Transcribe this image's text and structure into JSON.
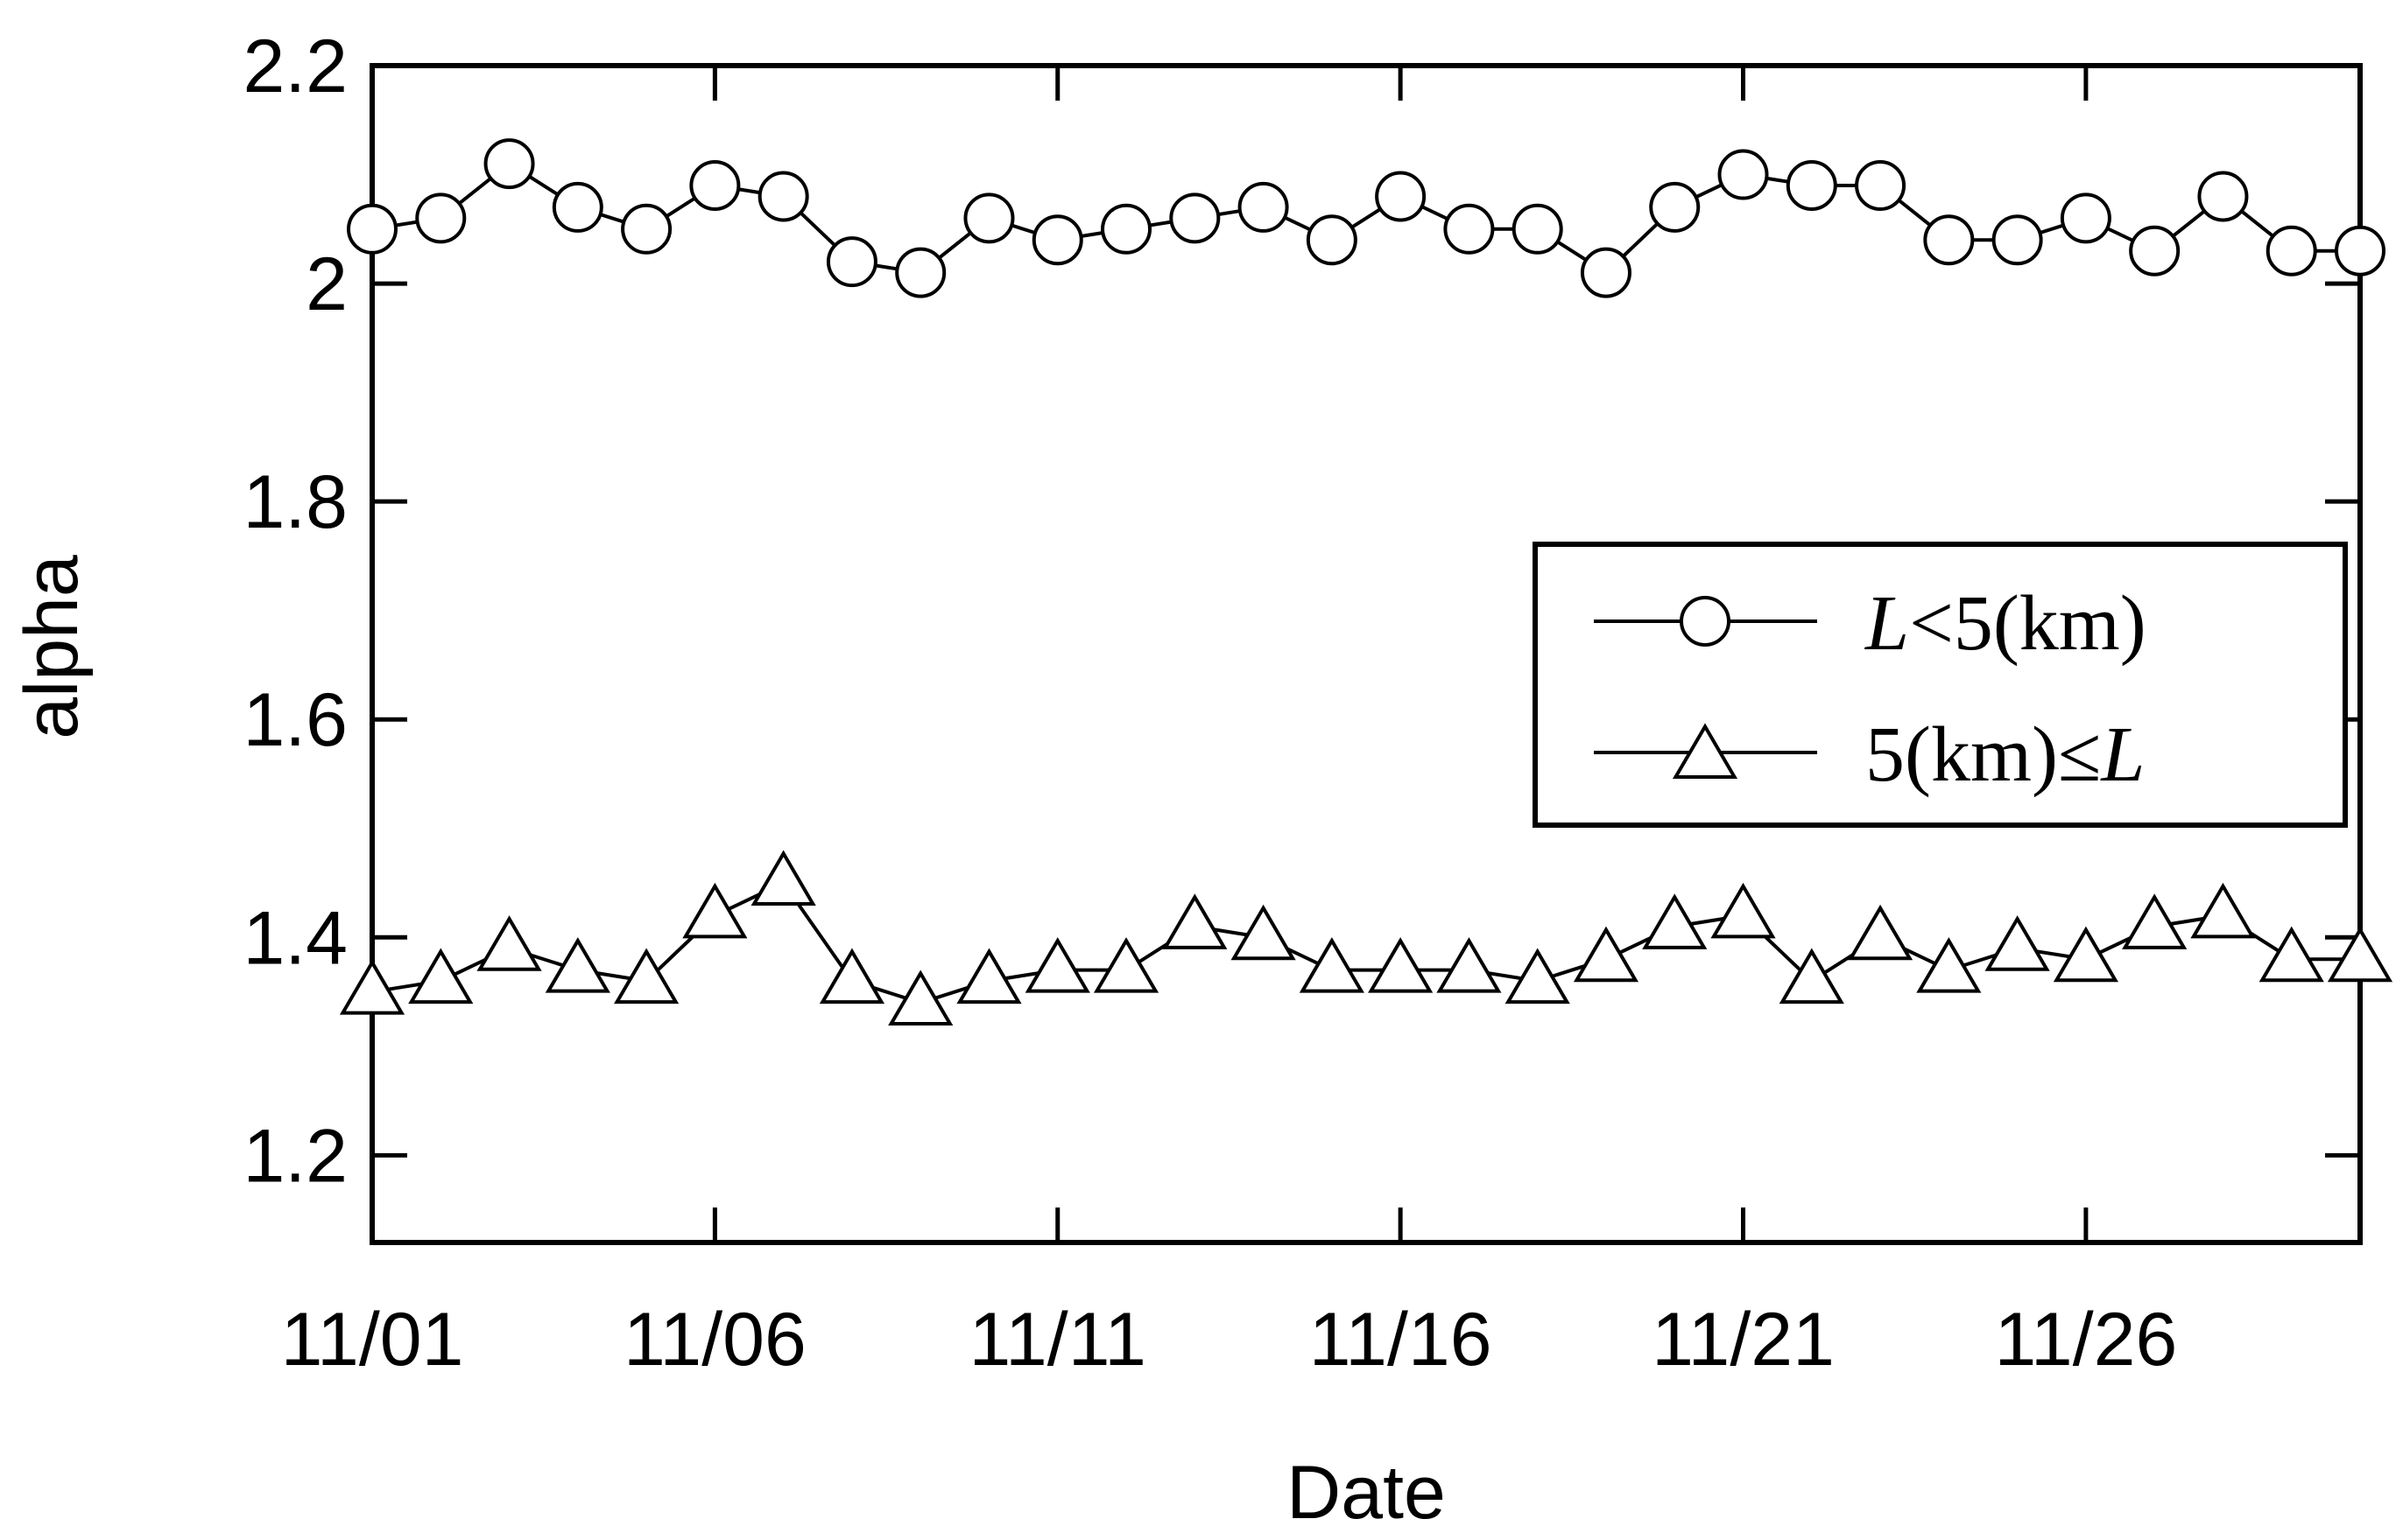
{
  "chart_data": {
    "type": "line",
    "xlabel": "Date",
    "ylabel": "alpha",
    "ylim": [
      1.12,
      2.2
    ],
    "yticks": [
      1.2,
      1.4,
      1.6,
      1.8,
      2.0,
      2.2
    ],
    "ytick_labels": [
      "1.2",
      "1.4",
      "1.6",
      "1.8",
      "2",
      "2.2"
    ],
    "x_dates": [
      "11/01",
      "11/02",
      "11/03",
      "11/04",
      "11/05",
      "11/06",
      "11/07",
      "11/08",
      "11/09",
      "11/10",
      "11/11",
      "11/12",
      "11/13",
      "11/14",
      "11/15",
      "11/16",
      "11/17",
      "11/18",
      "11/19",
      "11/20",
      "11/21",
      "11/22",
      "11/23",
      "11/24",
      "11/25",
      "11/26",
      "11/27",
      "11/28",
      "11/29",
      "11/30"
    ],
    "xtick_labels": [
      "11/01",
      "11/06",
      "11/11",
      "11/16",
      "11/21",
      "11/26"
    ],
    "grid": false,
    "legend_position": "right",
    "series": [
      {
        "name": "L<5(km)",
        "name_parts": {
          "var": "L",
          "rest": "<5(km)"
        },
        "marker": "circle",
        "values": [
          2.05,
          2.06,
          2.11,
          2.07,
          2.05,
          2.09,
          2.08,
          2.02,
          2.01,
          2.06,
          2.04,
          2.05,
          2.06,
          2.07,
          2.04,
          2.08,
          2.05,
          2.05,
          2.01,
          2.07,
          2.1,
          2.09,
          2.09,
          2.04,
          2.04,
          2.06,
          2.03,
          2.08,
          2.03,
          2.03
        ]
      },
      {
        "name": "5(km)≤L",
        "name_parts": {
          "rest": "5(km)≤",
          "var": "L"
        },
        "marker": "triangle",
        "values": [
          1.35,
          1.36,
          1.39,
          1.37,
          1.36,
          1.42,
          1.45,
          1.36,
          1.34,
          1.36,
          1.37,
          1.37,
          1.41,
          1.4,
          1.37,
          1.37,
          1.37,
          1.36,
          1.38,
          1.41,
          1.42,
          1.36,
          1.4,
          1.37,
          1.39,
          1.38,
          1.41,
          1.42,
          1.38,
          1.38
        ]
      }
    ]
  }
}
